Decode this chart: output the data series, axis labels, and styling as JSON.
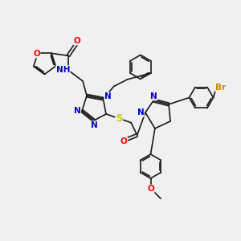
{
  "bg_color": "#f0f0f0",
  "bond_color": "#1a1a1a",
  "bond_width": 1.2,
  "atom_colors": {
    "O": "#ff0000",
    "N": "#0000cc",
    "S": "#cccc00",
    "Br": "#cc8800",
    "H": "#339999",
    "C": "#1a1a1a"
  },
  "font_size": 7.5,
  "fig_size": [
    3.0,
    3.0
  ],
  "dpi": 100
}
